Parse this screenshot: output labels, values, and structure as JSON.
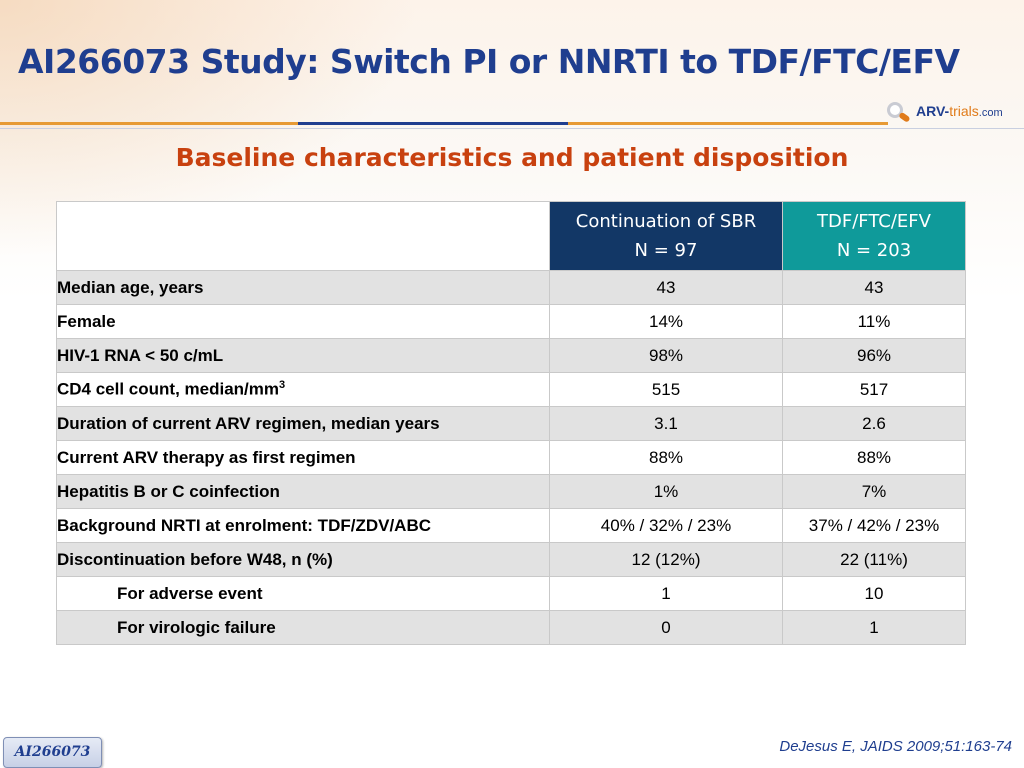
{
  "header": {
    "title": "AI266073 Study: Switch PI or NNRTI to TDF/FTC/EFV",
    "logo": {
      "part1": "ARV-",
      "part2": "trials",
      "part3": ".com",
      "icon": "arv-trials-logo-icon"
    }
  },
  "subtitle": "Baseline characteristics and patient disposition",
  "table": {
    "columns": [
      {
        "line1": "Continuation of SBR",
        "line2": "N = 97"
      },
      {
        "line1": "TDF/FTC/EFV",
        "line2": "N = 203"
      }
    ],
    "rows": [
      {
        "label": "Median age, years",
        "v1": "43",
        "v2": "43"
      },
      {
        "label": "Female",
        "v1": "14%",
        "v2": "11%"
      },
      {
        "label": "HIV-1 RNA < 50 c/mL",
        "v1": "98%",
        "v2": "96%"
      },
      {
        "label": "CD4 cell count, median/mm",
        "label_sup": "3",
        "v1": "515",
        "v2": "517"
      },
      {
        "label": "Duration of current ARV regimen, median years",
        "v1": "3.1",
        "v2": "2.6"
      },
      {
        "label": "Current ARV therapy as first regimen",
        "v1": "88%",
        "v2": "88%"
      },
      {
        "label": "Hepatitis B or C coinfection",
        "v1": "1%",
        "v2": "7%"
      },
      {
        "label": "Background NRTI at  enrolment: TDF/ZDV/ABC",
        "v1": "40% / 32% / 23%",
        "v2": "37% / 42% / 23%"
      },
      {
        "label": "Discontinuation before W48, n (%)",
        "v1": "12 (12%)",
        "v2": "22 (11%)"
      },
      {
        "label": "For adverse event",
        "v1": "1",
        "v2": "10"
      },
      {
        "label": "For virologic failure",
        "v1": "0",
        "v2": "1"
      }
    ]
  },
  "footer": {
    "citation": "DeJesus E, JAIDS 2009;51:163-74",
    "badge": "AI266073"
  },
  "colors": {
    "title": "#1f3e8f",
    "subtitle": "#c8410f",
    "header_col1": "#123766",
    "header_col2": "#0f9a9a",
    "row_shade": "#e2e2e2",
    "accent_orange": "#e79a34"
  }
}
